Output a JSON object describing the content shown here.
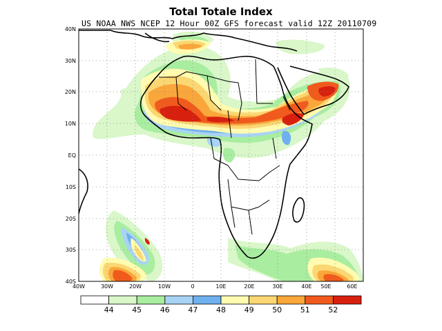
{
  "title": "Total Totale Index",
  "subtitle": "US NOAA NWS NCEP 12 Hour 00Z GFS forecast valid 12Z 20110709",
  "lat_labels": [
    "40N",
    "30N",
    "20N",
    "10N",
    "EQ",
    "10S",
    "20S",
    "30S",
    "40S"
  ],
  "lon_labels": [
    "40W",
    "30W",
    "20W",
    "10W",
    "0",
    "10E",
    "20E",
    "30E",
    "40E",
    "50E",
    "60E"
  ],
  "colorbar": {
    "labels": [
      "44",
      "45",
      "46",
      "47",
      "48",
      "49",
      "50",
      "51",
      "52"
    ],
    "colors": [
      "#ffffff",
      "#d9f7c9",
      "#a9eda0",
      "#a9d3f5",
      "#6fb0ee",
      "#fffbb0",
      "#fbd773",
      "#f9a63a",
      "#f05b1d",
      "#d8200f"
    ]
  },
  "colors": {
    "coastline": "#000000",
    "grid": "#888888"
  }
}
